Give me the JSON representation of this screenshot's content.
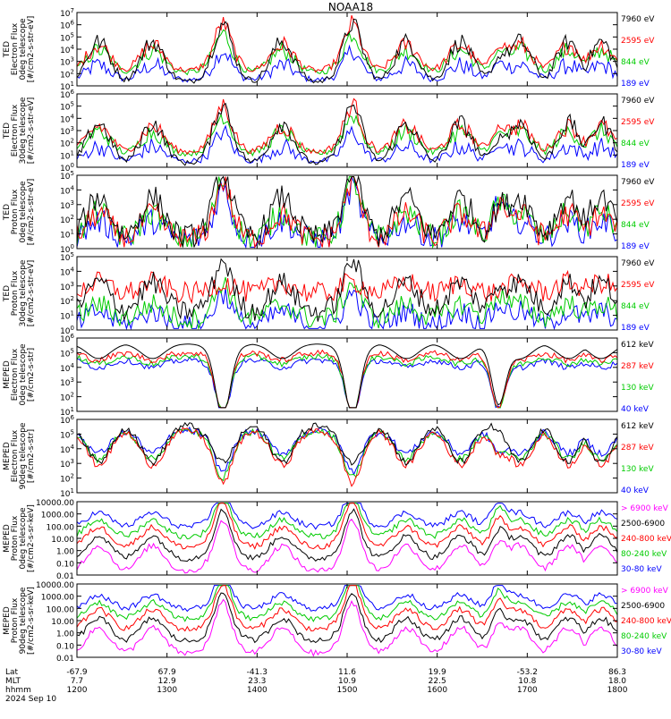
{
  "chart_data": {
    "type": "line",
    "title": "NOAA18",
    "date_label": "2024 Sep 10",
    "x": {
      "row_labels": [
        "Lat",
        "MLT",
        "hhmm"
      ],
      "ticks": [
        {
          "Lat": "-67.9",
          "MLT": "7.7",
          "hhmm": "1200"
        },
        {
          "Lat": "67.9",
          "MLT": "12.9",
          "hhmm": "1300"
        },
        {
          "Lat": "-41.3",
          "MLT": "23.3",
          "hhmm": "1400"
        },
        {
          "Lat": "11.6",
          "MLT": "10.9",
          "hhmm": "1500"
        },
        {
          "Lat": "19.9",
          "MLT": "22.5",
          "hhmm": "1600"
        },
        {
          "Lat": "-53.2",
          "MLT": "10.8",
          "hhmm": "1700"
        },
        {
          "Lat": "86.3",
          "MLT": "18.0",
          "hhmm": "1800"
        }
      ],
      "range_hhmm": [
        "1200",
        "1800"
      ]
    },
    "panels": [
      {
        "ylabel": [
          "TED",
          "Electron Flux",
          "0deg telescope",
          "[#/cm2-s-str-eV]"
        ],
        "yscale": "log",
        "ylim_exp": [
          1,
          7
        ],
        "tick_labels": [
          "10^1",
          "10^2",
          "10^3",
          "10^4",
          "10^5",
          "10^6",
          "10^7"
        ],
        "legend": [
          {
            "name": "7960 eV",
            "color": "#000000"
          },
          {
            "name": "2595 eV",
            "color": "#ff0000"
          },
          {
            "name": "844 eV",
            "color": "#00cc00"
          },
          {
            "name": "189 eV",
            "color": "#0000ff"
          }
        ],
        "profile": "ted_e"
      },
      {
        "ylabel": [
          "TED",
          "Electron Flux",
          "30deg telescope",
          "[#/cm2-s-str-eV]"
        ],
        "yscale": "log",
        "ylim_exp": [
          0,
          6
        ],
        "tick_labels": [
          "10^0",
          "10^1",
          "10^2",
          "10^3",
          "10^4",
          "10^5",
          "10^6"
        ],
        "legend": [
          {
            "name": "7960 eV",
            "color": "#000000"
          },
          {
            "name": "2595 eV",
            "color": "#ff0000"
          },
          {
            "name": "844 eV",
            "color": "#00cc00"
          },
          {
            "name": "189 eV",
            "color": "#0000ff"
          }
        ],
        "profile": "ted_e"
      },
      {
        "ylabel": [
          "TED",
          "Proton Flux",
          "0deg telescope",
          "[#/cm2-s-str-eV]"
        ],
        "yscale": "log",
        "ylim_exp": [
          0,
          5
        ],
        "tick_labels": [
          "10^0",
          "10^1",
          "10^2",
          "10^3",
          "10^4",
          "10^5"
        ],
        "legend": [
          {
            "name": "7960 eV",
            "color": "#000000"
          },
          {
            "name": "2595 eV",
            "color": "#ff0000"
          },
          {
            "name": "844 eV",
            "color": "#00cc00"
          },
          {
            "name": "189 eV",
            "color": "#0000ff"
          }
        ],
        "profile": "ted_p"
      },
      {
        "ylabel": [
          "TED",
          "Proton Flux",
          "30deg telescope",
          "[#/cm2-s-str-eV]"
        ],
        "yscale": "log",
        "ylim_exp": [
          0,
          5
        ],
        "tick_labels": [
          "10^0",
          "10^1",
          "10^2",
          "10^3",
          "10^4",
          "10^5"
        ],
        "legend": [
          {
            "name": "7960 eV",
            "color": "#000000"
          },
          {
            "name": "2595 eV",
            "color": "#ff0000"
          },
          {
            "name": "844 eV",
            "color": "#00cc00"
          },
          {
            "name": "189 eV",
            "color": "#0000ff"
          }
        ],
        "profile": "ted_p30"
      },
      {
        "ylabel": [
          "MEPED",
          "Electron Flux",
          "0deg telescope",
          "[#/cm2-s-str]"
        ],
        "yscale": "log",
        "ylim_exp": [
          1,
          6
        ],
        "tick_labels": [
          "10^1",
          "10^2",
          "10^3",
          "10^4",
          "10^5",
          "10^6"
        ],
        "legend": [
          {
            "name": "612 keV",
            "color": "#000000"
          },
          {
            "name": "287 keV",
            "color": "#ff0000"
          },
          {
            "name": "130 keV",
            "color": "#00cc00"
          },
          {
            "name": "40 keV",
            "color": "#0000ff"
          }
        ],
        "profile": "meped_e0"
      },
      {
        "ylabel": [
          "MEPED",
          "Electron Flux",
          "90deg telescope",
          "[#/cm2-s-str]"
        ],
        "yscale": "log",
        "ylim_exp": [
          1,
          6
        ],
        "tick_labels": [
          "10^1",
          "10^2",
          "10^3",
          "10^4",
          "10^5",
          "10^6"
        ],
        "legend": [
          {
            "name": "612 keV",
            "color": "#000000"
          },
          {
            "name": "287 keV",
            "color": "#ff0000"
          },
          {
            "name": "130 keV",
            "color": "#00cc00"
          },
          {
            "name": "40 keV",
            "color": "#0000ff"
          }
        ],
        "profile": "meped_e90"
      },
      {
        "ylabel": [
          "MEPED",
          "Proton Flux",
          "0deg telescope",
          "[#/cm2-s-sr-keV]"
        ],
        "yscale": "log",
        "ylim_exp": [
          -2,
          4
        ],
        "tick_labels": [
          "0.01",
          "0.10",
          "1.00",
          "10.00",
          "100.00",
          "1000.00",
          "10000.00"
        ],
        "legend": [
          {
            "name": "> 6900 keV",
            "color": "#ff00ff"
          },
          {
            "name": "2500-6900",
            "color": "#000000"
          },
          {
            "name": "240-800 keV",
            "color": "#ff0000"
          },
          {
            "name": "80-240 keV",
            "color": "#00cc00"
          },
          {
            "name": "30-80 keV",
            "color": "#0000ff"
          }
        ],
        "profile": "meped_p"
      },
      {
        "ylabel": [
          "MEPED",
          "Proton Flux",
          "90deg telescope",
          "[#/cm2-s-sr-keV]"
        ],
        "yscale": "log",
        "ylim_exp": [
          -2,
          4
        ],
        "tick_labels": [
          "0.01",
          "0.10",
          "1.00",
          "10.00",
          "100.00",
          "1000.00",
          "10000.00"
        ],
        "legend": [
          {
            "name": "> 6900 keV",
            "color": "#ff00ff"
          },
          {
            "name": "2500-6900",
            "color": "#000000"
          },
          {
            "name": "240-800 keV",
            "color": "#ff0000"
          },
          {
            "name": "80-240 keV",
            "color": "#00cc00"
          },
          {
            "name": "30-80 keV",
            "color": "#0000ff"
          }
        ],
        "profile": "meped_p"
      }
    ]
  }
}
